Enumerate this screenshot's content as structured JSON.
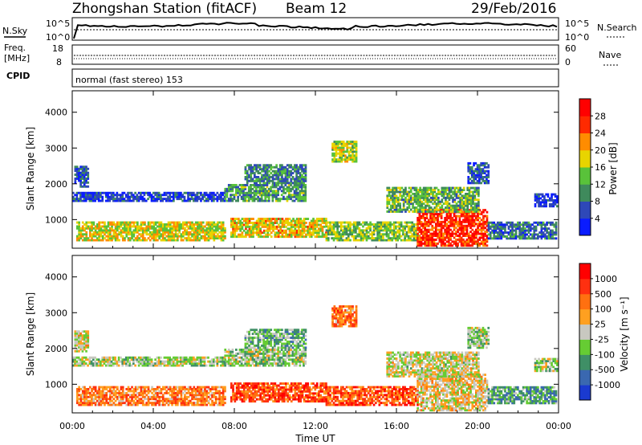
{
  "header": {
    "title": "Zhongshan Station (fitACF)",
    "beam": "Beam 12",
    "date": "29/Feb/2016"
  },
  "panels": {
    "nsky_label": "N.Sky",
    "nsky_ticks": [
      "10^5",
      "10^0"
    ],
    "nsearch_label": "N.Search",
    "nsearch_ticks": [
      "10^5",
      "10^0"
    ],
    "freq_label_line1": "Freq.",
    "freq_label_line2": "[MHz]",
    "freq_ticks": [
      "18",
      "8"
    ],
    "nave_label": "Nave",
    "nave_ticks": [
      "60",
      "0"
    ],
    "cpid_label": "CPID",
    "cpid_text": "normal (fast stereo) 153"
  },
  "chart_data": [
    {
      "type": "heatmap",
      "name": "power",
      "ylabel": "Slant Range [km]",
      "y_ticks": [
        1000,
        2000,
        3000,
        4000
      ],
      "ylim": [
        200,
        4600
      ],
      "xlim": [
        0,
        24
      ],
      "x_ticks": [
        "00:00",
        "04:00",
        "08:00",
        "12:00",
        "16:00",
        "20:00",
        "00:00"
      ],
      "colorbar_label": "Power [dB]",
      "colorbar_ticks": [
        "4",
        "8",
        "12",
        "16",
        "20",
        "24",
        "28"
      ],
      "colorbar_colors": [
        "#0a1cff",
        "#2e48b8",
        "#3f8a5c",
        "#59c23a",
        "#e8d400",
        "#ff8c00",
        "#ff2a00",
        "#ff0000"
      ]
    },
    {
      "type": "heatmap",
      "name": "velocity",
      "ylabel": "Slant Range [km]",
      "y_ticks": [
        1000,
        2000,
        3000,
        4000
      ],
      "ylim": [
        200,
        4600
      ],
      "xlim": [
        0,
        24
      ],
      "x_ticks": [
        "00:00",
        "04:00",
        "08:00",
        "12:00",
        "16:00",
        "20:00",
        "00:00"
      ],
      "xlabel": "Time UT",
      "colorbar_label": "Velocity [m s⁻¹]",
      "colorbar_ticks": [
        "1000",
        "500",
        "100",
        "25",
        "-25",
        "-100",
        "-500",
        "-1000"
      ],
      "colorbar_colors": [
        "#1a3ad0",
        "#3a68b0",
        "#3f8f66",
        "#66cc33",
        "#c8c8c0",
        "#ffa020",
        "#ff7010",
        "#ff3010",
        "#ff0000"
      ]
    }
  ],
  "echo_regions": [
    {
      "t0": 0.0,
      "t1": 7.5,
      "r0": 1500,
      "r1": 1750,
      "pv": 0.15,
      "vv": 0.45
    },
    {
      "t0": 7.5,
      "t1": 11.5,
      "r0": 1500,
      "r1": 1950,
      "pv": 0.35,
      "vv": 0.42
    },
    {
      "t0": 0.2,
      "t1": 7.5,
      "r0": 400,
      "r1": 900,
      "pv": 0.55,
      "vv": 0.7
    },
    {
      "t0": 7.8,
      "t1": 12.5,
      "r0": 500,
      "r1": 1050,
      "pv": 0.6,
      "vv": 0.8
    },
    {
      "t0": 12.5,
      "t1": 17.0,
      "r0": 400,
      "r1": 950,
      "pv": 0.45,
      "vv": 0.78
    },
    {
      "t0": 17.0,
      "t1": 20.5,
      "r0": 250,
      "r1": 1250,
      "pv": 0.85,
      "vv": 0.55
    },
    {
      "t0": 20.5,
      "t1": 23.9,
      "r0": 450,
      "r1": 900,
      "pv": 0.25,
      "vv": 0.3
    },
    {
      "t0": 8.5,
      "t1": 11.5,
      "r0": 2000,
      "r1": 2500,
      "pv": 0.3,
      "vv": 0.35
    },
    {
      "t0": 12.8,
      "t1": 14.0,
      "r0": 2600,
      "r1": 3200,
      "pv": 0.5,
      "vv": 0.72
    },
    {
      "t0": 15.5,
      "t1": 20.0,
      "r0": 1200,
      "r1": 1900,
      "pv": 0.4,
      "vv": 0.5
    },
    {
      "t0": 19.5,
      "t1": 20.5,
      "r0": 2000,
      "r1": 2600,
      "pv": 0.2,
      "vv": 0.42
    },
    {
      "t0": 22.8,
      "t1": 23.9,
      "r0": 1350,
      "r1": 1700,
      "pv": 0.12,
      "vv": 0.44
    },
    {
      "t0": 0.1,
      "t1": 0.8,
      "r0": 1900,
      "r1": 2500,
      "pv": 0.2,
      "vv": 0.5
    }
  ]
}
